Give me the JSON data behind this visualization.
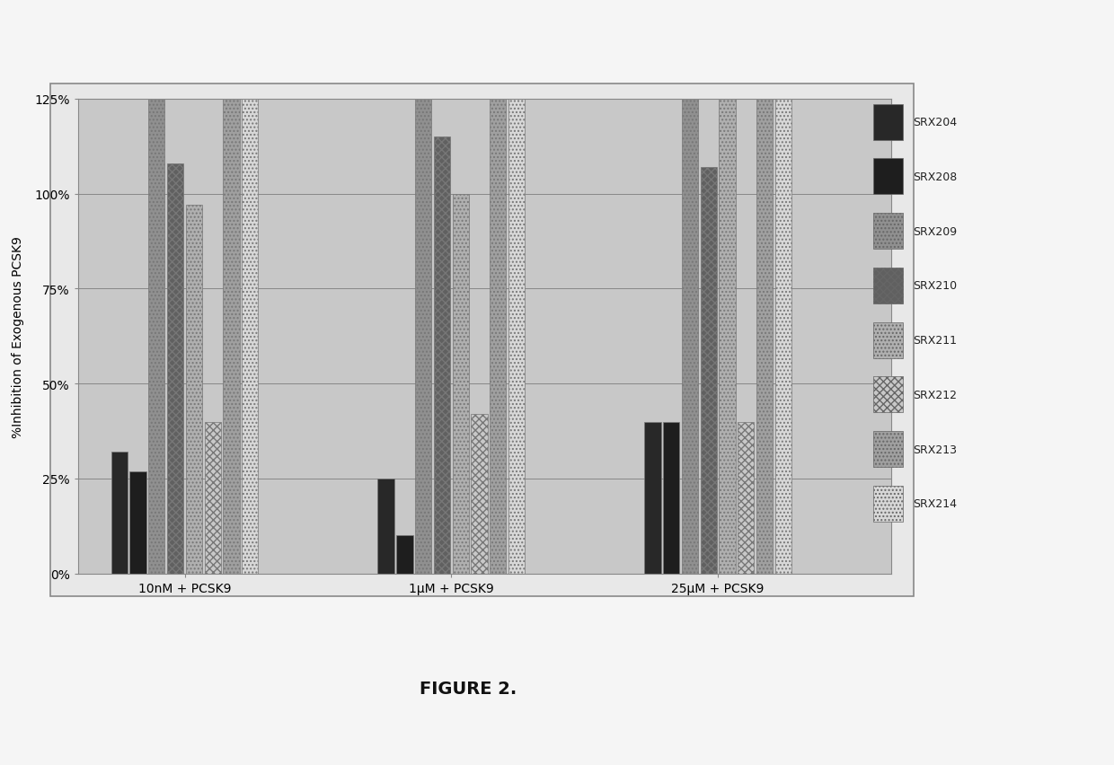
{
  "groups": [
    "10nM + PCSK9",
    "1μM + PCSK9",
    "25μM + PCSK9"
  ],
  "series": [
    "SRX204",
    "SRX208",
    "SRX209",
    "SRX210",
    "SRX211",
    "SRX212",
    "SRX213",
    "SRX214"
  ],
  "values": {
    "SRX204": [
      32,
      25,
      40
    ],
    "SRX208": [
      27,
      10,
      40
    ],
    "SRX209": [
      125,
      125,
      125
    ],
    "SRX210": [
      108,
      115,
      107
    ],
    "SRX211": [
      97,
      100,
      125
    ],
    "SRX212": [
      40,
      42,
      40
    ],
    "SRX213": [
      125,
      125,
      125
    ],
    "SRX214": [
      125,
      125,
      125
    ]
  },
  "gray_shades": [
    "#3a3a3a",
    "#2a2a2a",
    "#8a8a8a",
    "#6a6a6a",
    "#a8a8a8",
    "#c0c0c0",
    "#b0b0b0",
    "#d5d5d5"
  ],
  "hatch_patterns": [
    "xx",
    "..",
    "",
    "xx",
    "..",
    "",
    "xx",
    ".."
  ],
  "ylabel": "%Inhibition of Exogenous PCSK9",
  "ylim": [
    0,
    125
  ],
  "yticks": [
    0,
    25,
    50,
    75,
    100,
    125
  ],
  "yticklabels": [
    "0%",
    "25%",
    "50%",
    "75%",
    "100%",
    "125%"
  ],
  "figure_caption": "FIGURE 2.",
  "outer_bg": "#e8e8e8",
  "chart_bg": "#c8c8c8",
  "figure_bg": "#f5f5f5"
}
